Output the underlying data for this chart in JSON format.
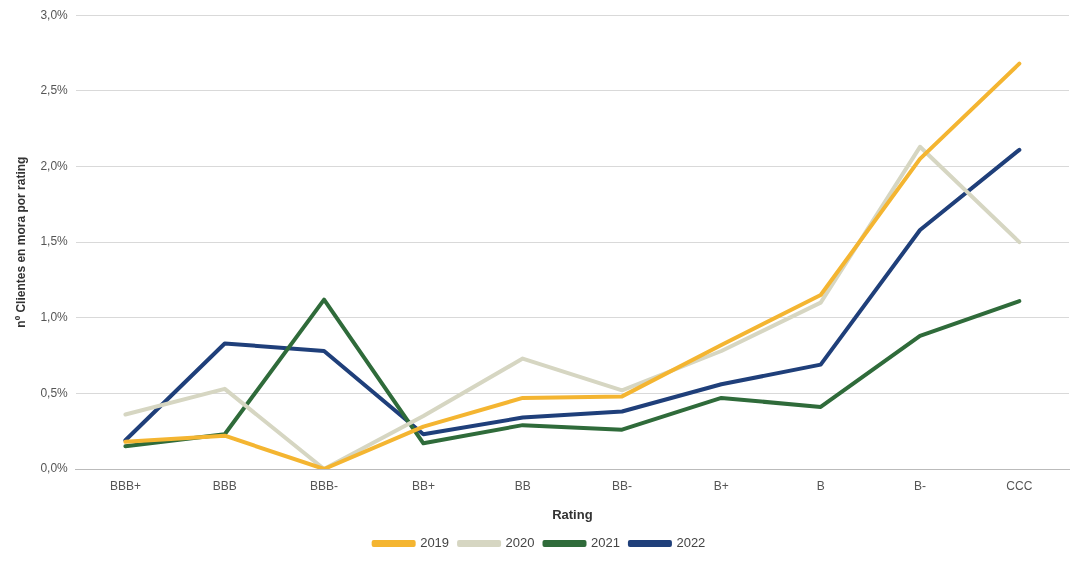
{
  "chart_data": {
    "type": "line",
    "xlabel": "Rating",
    "ylabel": "nº Clientes en mora por rating",
    "categories": [
      "BBB+",
      "BBB",
      "BBB-",
      "BB+",
      "BB",
      "BB-",
      "B+",
      "B",
      "B-",
      "CCC"
    ],
    "series": [
      {
        "name": "2019",
        "color": "#f4b531",
        "values": [
          0.18,
          0.22,
          0.0,
          0.28,
          0.47,
          0.48,
          0.82,
          1.15,
          2.05,
          2.68
        ]
      },
      {
        "name": "2020",
        "color": "#d6d6c2",
        "values": [
          0.36,
          0.53,
          0.0,
          0.35,
          0.73,
          0.52,
          0.78,
          1.1,
          2.13,
          1.5
        ]
      },
      {
        "name": "2021",
        "color": "#2f6b3a",
        "values": [
          0.15,
          0.23,
          1.12,
          0.17,
          0.29,
          0.26,
          0.47,
          0.41,
          0.88,
          1.11
        ]
      },
      {
        "name": "2022",
        "color": "#1f3f7a",
        "values": [
          0.19,
          0.83,
          0.78,
          0.23,
          0.34,
          0.38,
          0.56,
          0.69,
          1.58,
          2.11
        ]
      }
    ],
    "ylim": [
      0,
      3
    ],
    "yticks": [
      {
        "value": 0,
        "label": "0,0%"
      },
      {
        "value": 0.5,
        "label": "0,5%"
      },
      {
        "value": 1,
        "label": "1,0%"
      },
      {
        "value": 1.5,
        "label": "1,5%"
      },
      {
        "value": 2,
        "label": "2,0%"
      },
      {
        "value": 2.5,
        "label": "2,5%"
      },
      {
        "value": 3,
        "label": "3,0%"
      }
    ],
    "grid": "y",
    "legend": "bottom",
    "marker": "none",
    "line_style": "solid"
  }
}
